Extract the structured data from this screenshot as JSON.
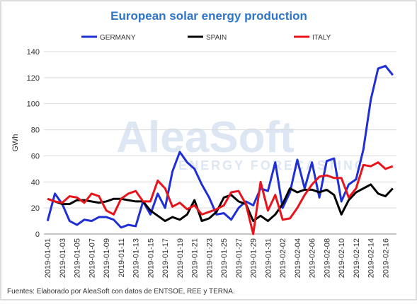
{
  "chart_data": {
    "type": "line",
    "title": "European solar energy production",
    "ylabel": "GWh",
    "watermark": "AleaSoft",
    "watermark_subtitle": "ENERGY FORECASTING",
    "source": "Fuentes: Elaborado por AleaSoft con datos de ENTSOE, REE y TERNA.",
    "categories": [
      "2019-01-01",
      null,
      "2019-01-03",
      null,
      "2019-01-05",
      null,
      "2019-01-07",
      null,
      "2019-01-09",
      null,
      "2019-01-11",
      null,
      "2019-01-13",
      null,
      "2019-01-15",
      null,
      "2019-01-17",
      null,
      "2019-01-19",
      null,
      "2019-01-21",
      null,
      "2019-01-23",
      null,
      "2019-01-25",
      null,
      "2019-01-27",
      null,
      "2019-01-29",
      null,
      "2019-01-31",
      null,
      "2019-02-02",
      null,
      "2019-02-04",
      null,
      "2019-02-06",
      null,
      "2019-02-08",
      null,
      "2019-02-10",
      null,
      "2019-02-12",
      null,
      "2019-02-14",
      null,
      "2019-02-16",
      null
    ],
    "series": [
      {
        "name": "GERMANY",
        "color": "#1f2fd6",
        "values": [
          10,
          31,
          23,
          10,
          7,
          11,
          10,
          13,
          13,
          11,
          5,
          7,
          6,
          25,
          15,
          31,
          20,
          48,
          63,
          55,
          50,
          38,
          28,
          15,
          16,
          11,
          20,
          25,
          22,
          35,
          33,
          55,
          20,
          32,
          57,
          35,
          55,
          28,
          56,
          58,
          25,
          38,
          42,
          65,
          103,
          127,
          129,
          122
        ]
      },
      {
        "name": "SPAIN",
        "color": "#000000",
        "values": [
          27,
          25,
          23,
          23,
          26,
          26,
          25,
          24,
          25,
          27,
          27,
          26,
          25,
          25,
          18,
          14,
          10,
          13,
          11,
          15,
          26,
          10,
          12,
          17,
          28,
          30,
          25,
          23,
          10,
          14,
          10,
          15,
          23,
          35,
          32,
          34,
          34,
          32,
          34,
          30,
          15,
          26,
          32,
          35,
          38,
          31,
          29,
          35
        ]
      },
      {
        "name": "ITALY",
        "color": "#e8141b",
        "values": [
          27,
          25,
          24,
          29,
          28,
          24,
          31,
          29,
          18,
          15,
          27,
          31,
          33,
          25,
          25,
          41,
          35,
          21,
          24,
          19,
          22,
          15,
          17,
          19,
          22,
          32,
          33,
          23,
          0,
          40,
          18,
          30,
          11,
          12,
          20,
          30,
          38,
          44,
          45,
          43,
          43,
          28,
          35,
          53,
          52,
          55,
          50,
          52
        ]
      }
    ],
    "ylim": [
      0,
      140
    ],
    "yticks": [
      0,
      20,
      40,
      60,
      80,
      100,
      120,
      140
    ],
    "grid": true,
    "legend": "top"
  }
}
